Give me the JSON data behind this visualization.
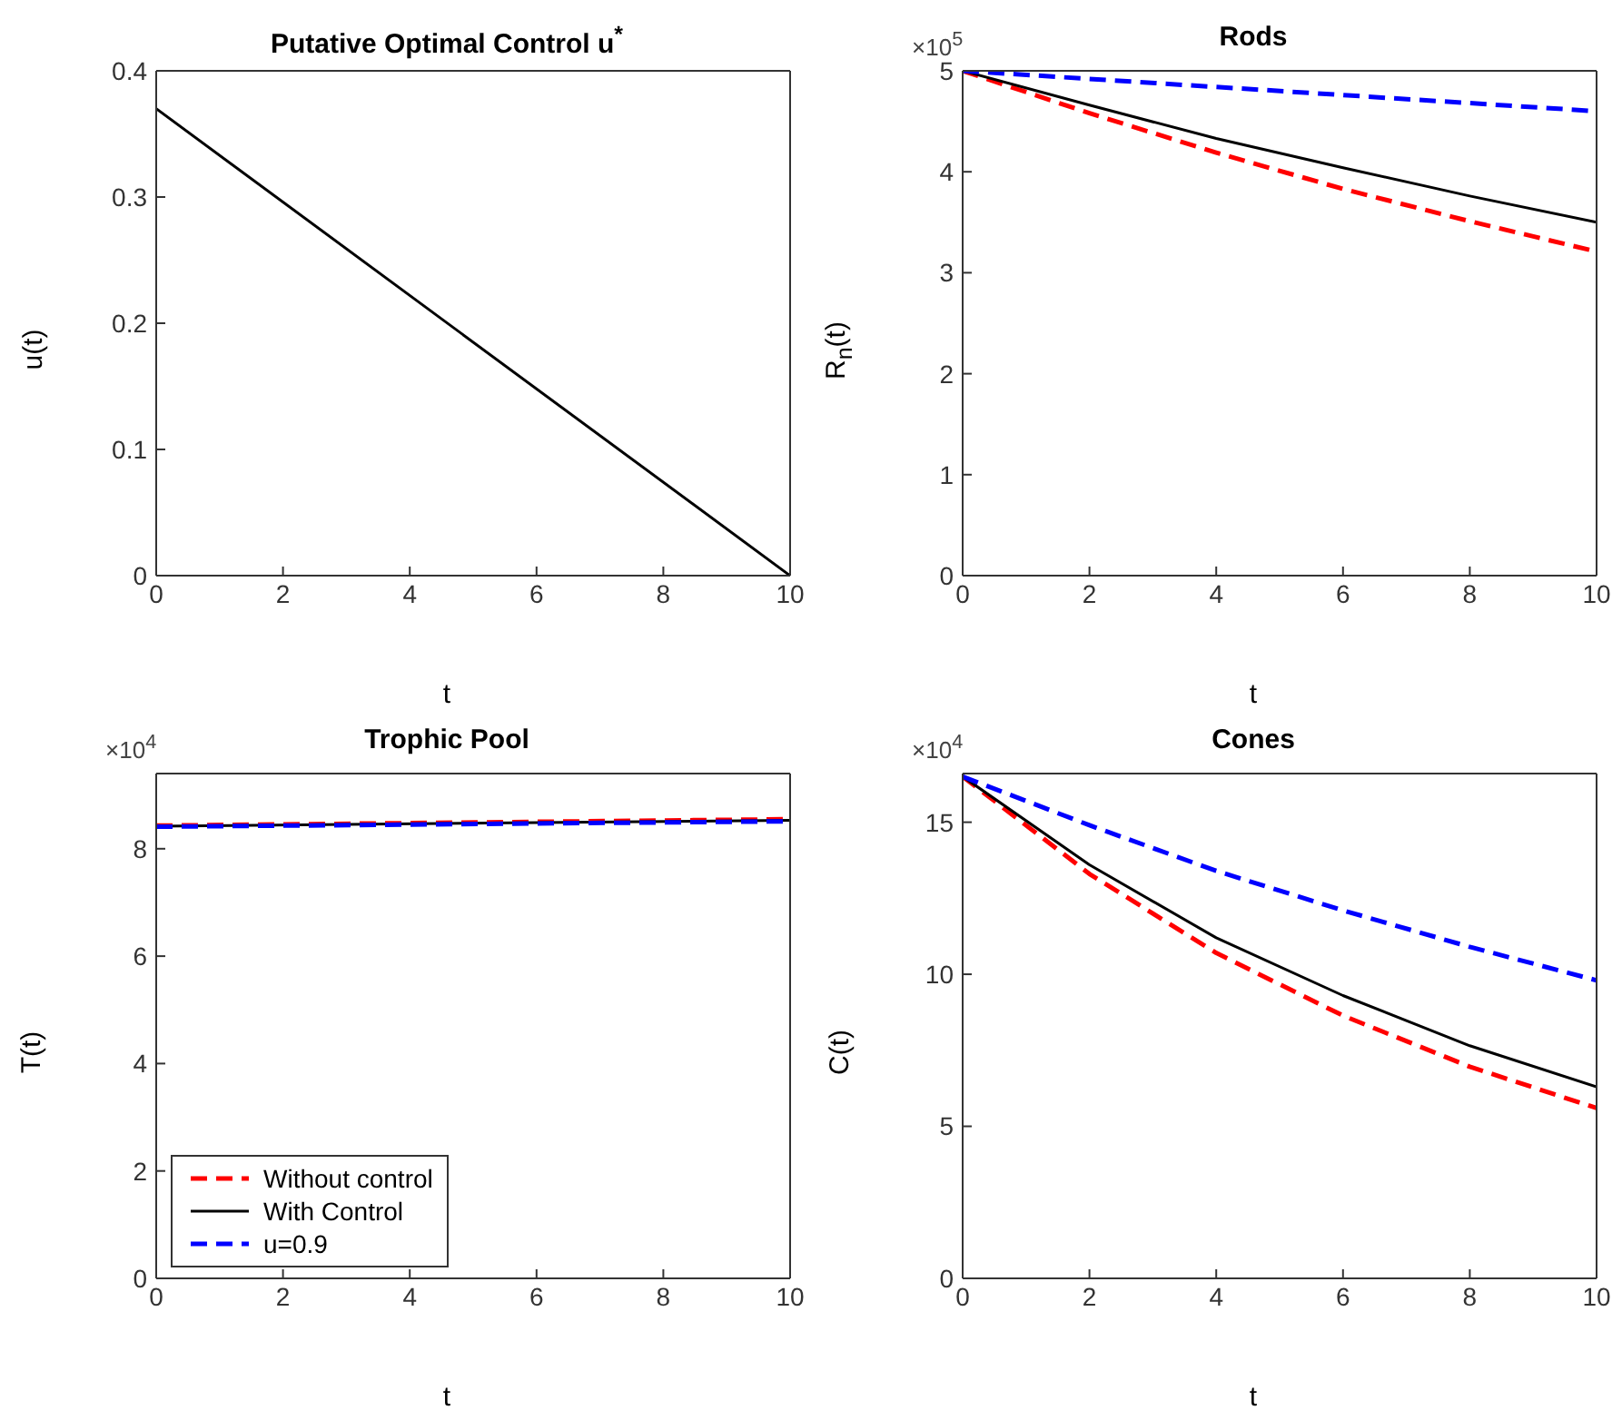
{
  "chart_data": [
    {
      "type": "line",
      "title": "Putative Optimal Control u$^{*}$",
      "xlabel": "t",
      "ylabel": "u(t)",
      "xlim": [
        0,
        10
      ],
      "xticks": [
        0,
        2,
        4,
        6,
        8,
        10
      ],
      "ylim": [
        0,
        0.4
      ],
      "yticks": [
        0,
        0.1,
        0.2,
        0.3,
        0.4
      ],
      "series": [
        {
          "color": "#000000",
          "line_style": "solid",
          "x": [
            0,
            10
          ],
          "values": [
            0.37,
            0
          ]
        }
      ]
    },
    {
      "type": "line",
      "title": "Rods",
      "xlabel": "t",
      "ylabel": "R$_{n}$(t)",
      "annotations": [
        "×10$^{5}$"
      ],
      "xlim": [
        0,
        10
      ],
      "xticks": [
        0,
        2,
        4,
        6,
        8,
        10
      ],
      "ylim": [
        0,
        5
      ],
      "yticks": [
        0,
        1,
        2,
        3,
        4,
        5
      ],
      "series": [
        {
          "color": "#ff0000",
          "line_style": "dashed",
          "x": [
            0,
            2,
            4,
            6,
            8,
            10
          ],
          "values": [
            5,
            4.58,
            4.19,
            3.83,
            3.51,
            3.21
          ]
        },
        {
          "color": "#000000",
          "line_style": "solid",
          "x": [
            0,
            2,
            4,
            6,
            8,
            10
          ],
          "values": [
            5,
            4.66,
            4.33,
            4.04,
            3.76,
            3.5
          ]
        },
        {
          "color": "#0000ff",
          "line_style": "dashed",
          "x": [
            0,
            2,
            4,
            6,
            8,
            10
          ],
          "values": [
            5,
            4.92,
            4.84,
            4.76,
            4.68,
            4.6
          ]
        }
      ]
    },
    {
      "type": "line",
      "title": "Trophic Pool",
      "xlabel": "t",
      "ylabel": "T(t)",
      "annotations": [
        "×10$^{4}$"
      ],
      "xlim": [
        0,
        10
      ],
      "xticks": [
        0,
        2,
        4,
        6,
        8,
        10
      ],
      "ylim": [
        0,
        9.4
      ],
      "yticks": [
        0,
        2,
        4,
        6,
        8
      ],
      "legend": "bottom left",
      "series": [
        {
          "name": "Without control",
          "color": "#ff0000",
          "line_style": "dashed",
          "x": [
            0,
            10
          ],
          "values": [
            8.43,
            8.55
          ]
        },
        {
          "name": "With Control",
          "color": "#000000",
          "line_style": "solid",
          "x": [
            0,
            10
          ],
          "values": [
            8.42,
            8.53
          ]
        },
        {
          "name": "u=0.9",
          "color": "#0000ff",
          "line_style": "dashed",
          "x": [
            0,
            10
          ],
          "values": [
            8.41,
            8.51
          ]
        }
      ]
    },
    {
      "type": "line",
      "title": "Cones",
      "xlabel": "t",
      "ylabel": "C(t)",
      "annotations": [
        "×10$^{4}$"
      ],
      "xlim": [
        0,
        10
      ],
      "xticks": [
        0,
        2,
        4,
        6,
        8,
        10
      ],
      "ylim": [
        0,
        16.6
      ],
      "yticks": [
        0,
        5,
        10,
        15
      ],
      "series": [
        {
          "color": "#ff0000",
          "line_style": "dashed",
          "x": [
            0,
            2,
            4,
            6,
            8,
            10
          ],
          "values": [
            16.5,
            13.3,
            10.7,
            8.64,
            6.96,
            5.6
          ]
        },
        {
          "color": "#000000",
          "line_style": "solid",
          "x": [
            0,
            2,
            4,
            6,
            8,
            10
          ],
          "values": [
            16.5,
            13.6,
            11.2,
            9.3,
            7.65,
            6.3
          ]
        },
        {
          "color": "#0000ff",
          "line_style": "dashed",
          "x": [
            0,
            2,
            4,
            6,
            8,
            10
          ],
          "values": [
            16.5,
            14.9,
            13.4,
            12.1,
            10.9,
            9.8
          ]
        }
      ]
    }
  ]
}
